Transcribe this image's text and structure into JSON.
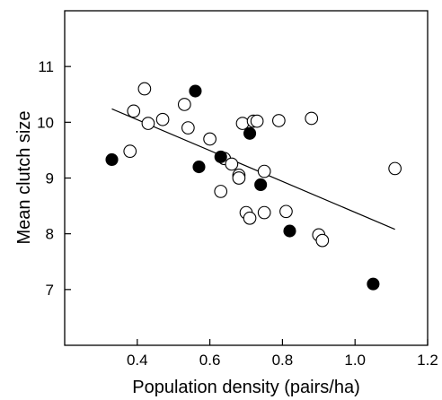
{
  "chart_data": {
    "type": "scatter",
    "xlabel": "Population density (pairs/ha)",
    "ylabel": "Mean clutch size",
    "xlim": [
      0.2,
      1.2
    ],
    "ylim": [
      6.0,
      12.0
    ],
    "xticks": [
      0.4,
      0.6,
      0.8,
      1.0,
      1.2
    ],
    "yticks": [
      7,
      8,
      9,
      10,
      11
    ],
    "xtick_labels": [
      "0.4",
      "0.6",
      "0.8",
      "1.0",
      "1.2"
    ],
    "ytick_labels": [
      "7",
      "8",
      "9",
      "10",
      "11"
    ],
    "series": [
      {
        "marker": "open circle",
        "points": [
          [
            0.38,
            9.48
          ],
          [
            0.39,
            10.2
          ],
          [
            0.42,
            10.6
          ],
          [
            0.43,
            9.98
          ],
          [
            0.47,
            10.05
          ],
          [
            0.53,
            10.32
          ],
          [
            0.54,
            9.9
          ],
          [
            0.6,
            9.7
          ],
          [
            0.63,
            8.76
          ],
          [
            0.64,
            9.35
          ],
          [
            0.66,
            9.25
          ],
          [
            0.68,
            9.05
          ],
          [
            0.68,
            9.0
          ],
          [
            0.69,
            9.98
          ],
          [
            0.7,
            8.38
          ],
          [
            0.71,
            8.28
          ],
          [
            0.72,
            10.02
          ],
          [
            0.73,
            10.02
          ],
          [
            0.75,
            9.12
          ],
          [
            0.75,
            8.38
          ],
          [
            0.79,
            10.03
          ],
          [
            0.81,
            8.4
          ],
          [
            0.88,
            10.07
          ],
          [
            0.9,
            7.98
          ],
          [
            0.91,
            7.88
          ],
          [
            1.11,
            9.17
          ]
        ]
      },
      {
        "marker": "filled circle",
        "points": [
          [
            0.33,
            9.33
          ],
          [
            0.56,
            10.56
          ],
          [
            0.57,
            9.2
          ],
          [
            0.63,
            9.38
          ],
          [
            0.71,
            9.8
          ],
          [
            0.74,
            8.88
          ],
          [
            0.82,
            8.05
          ],
          [
            1.05,
            7.1
          ]
        ]
      }
    ],
    "trendline": {
      "x": [
        0.33,
        1.11
      ],
      "y": [
        10.24,
        8.08
      ]
    }
  }
}
